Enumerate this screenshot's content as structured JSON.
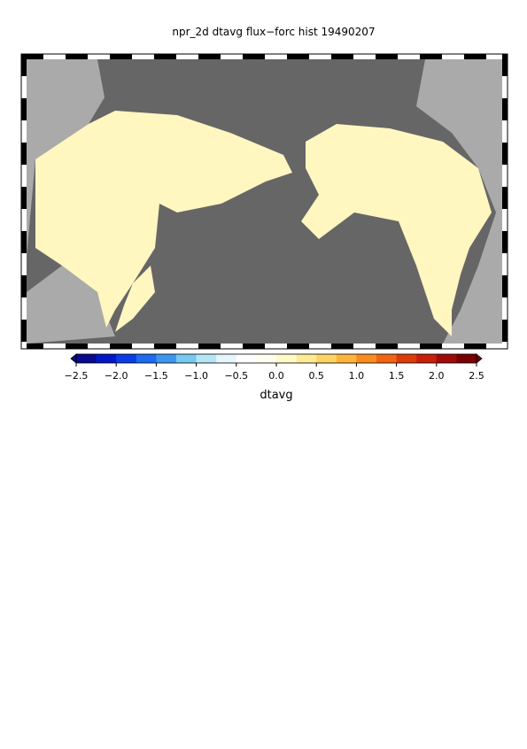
{
  "title": "npr_2d dtavg flux−forc hist 19490207",
  "colorbar": {
    "label": "dtavg",
    "lim": [
      -2.5,
      2.5
    ],
    "ticks": [
      {
        "value": -2.5,
        "label": "−2.5"
      },
      {
        "value": -2.0,
        "label": "−2.0"
      },
      {
        "value": -1.5,
        "label": "−1.5"
      },
      {
        "value": -1.0,
        "label": "−1.0"
      },
      {
        "value": -0.5,
        "label": "−0.5"
      },
      {
        "value": 0.0,
        "label": "0.0"
      },
      {
        "value": 0.5,
        "label": "0.5"
      },
      {
        "value": 1.0,
        "label": "1.0"
      },
      {
        "value": 1.5,
        "label": "1.5"
      },
      {
        "value": 2.0,
        "label": "2.0"
      },
      {
        "value": 2.5,
        "label": "2.5"
      }
    ],
    "colors": [
      "#0a0a8c",
      "#0018c8",
      "#0a3ce6",
      "#1e6af0",
      "#3c96f0",
      "#78c8f0",
      "#b4e6f8",
      "#e6f6fc",
      "#ffffff",
      "#fffff0",
      "#fffbc8",
      "#ffeb96",
      "#ffd264",
      "#ffb43c",
      "#fa8c1e",
      "#f06414",
      "#dc3c0a",
      "#c81e0a",
      "#a00a0a",
      "#780000"
    ]
  }
}
